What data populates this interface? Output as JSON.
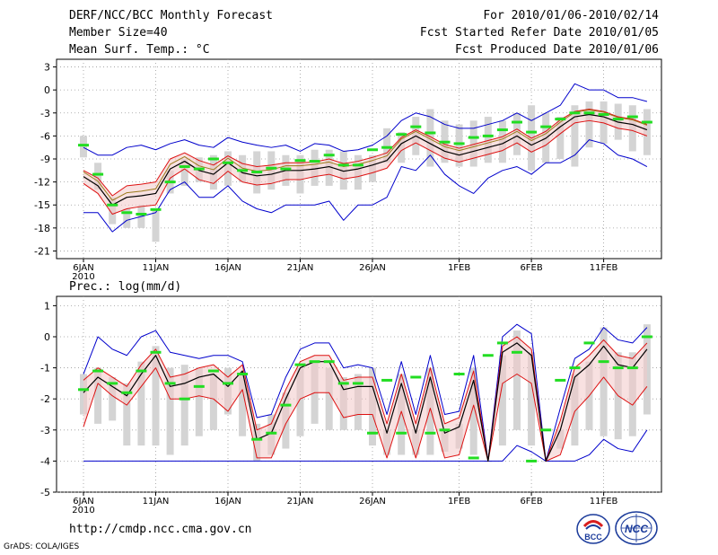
{
  "header": {
    "title": "DERF/NCC/BCC Monthly Forecast",
    "member_size": "Member Size=40",
    "variable": "Mean Surf. Temp.: °C",
    "period": "For 2010/01/06-2010/02/14",
    "fcst_started": "Fcst Started Refer Date 2010/01/05",
    "fcst_produced": "Fcst Produced Date 2010/01/06"
  },
  "footer": {
    "url": "http://cmdp.ncc.cma.gov.cn",
    "grads": "GrADS: COLA/IGES",
    "logo_bcc": "BCC",
    "logo_ncc": "NCC"
  },
  "colors": {
    "box": "#d4d4d4",
    "green": "#22dd22",
    "mean": "#000000",
    "inner": "#dd1111",
    "outer": "#0000cc",
    "olive": "#9b7a1a"
  },
  "chart_data": [
    {
      "type": "line",
      "title": "Mean Surf. Temp.: °C",
      "ylim": [
        -22,
        4
      ],
      "yticks": [
        3,
        0,
        -3,
        -6,
        -9,
        -12,
        -15,
        -18,
        -21
      ],
      "x": [
        0,
        1,
        2,
        3,
        4,
        5,
        6,
        7,
        8,
        9,
        10,
        11,
        12,
        13,
        14,
        15,
        16,
        17,
        18,
        19,
        20,
        21,
        22,
        23,
        24,
        25,
        26,
        27,
        28,
        29,
        30,
        31,
        32,
        33,
        34,
        35,
        36,
        37,
        38,
        39
      ],
      "xticks": [
        {
          "x": 0,
          "label": "6JAN",
          "year": "2010"
        },
        {
          "x": 5,
          "label": "11JAN"
        },
        {
          "x": 10,
          "label": "16JAN"
        },
        {
          "x": 15,
          "label": "21JAN"
        },
        {
          "x": 20,
          "label": "26JAN"
        },
        {
          "x": 26,
          "label": "1FEB"
        },
        {
          "x": 31,
          "label": "6FEB"
        },
        {
          "x": 36,
          "label": "11FEB"
        }
      ],
      "box_high": [
        -6.0,
        -9.5,
        -14.0,
        -15.5,
        -15.0,
        -15.5,
        -10.5,
        -9.0,
        -8.8,
        -8.5,
        -8.0,
        -8.5,
        -8.0,
        -8.0,
        -8.5,
        -8.5,
        -7.8,
        -7.8,
        -8.0,
        -8.5,
        -8.5,
        -5.0,
        -5.5,
        -3.5,
        -2.5,
        -4.0,
        -4.5,
        -4.0,
        -3.5,
        -4.0,
        -3.0,
        -2.0,
        -3.0,
        -3.5,
        -2.0,
        -1.5,
        -1.5,
        -1.8,
        -2.0,
        -2.5
      ],
      "box_low": [
        -8.8,
        -13.0,
        -17.5,
        -18.0,
        -18.0,
        -19.8,
        -13.5,
        -12.5,
        -12.0,
        -13.0,
        -12.5,
        -12.0,
        -13.5,
        -13.0,
        -12.5,
        -13.5,
        -12.5,
        -12.5,
        -13.0,
        -13.0,
        -12.0,
        -9.5,
        -9.5,
        -8.5,
        -10.0,
        -9.5,
        -10.0,
        -10.0,
        -9.5,
        -9.5,
        -8.5,
        -10.5,
        -9.5,
        -9.0,
        -10.0,
        -7.5,
        -7.0,
        -6.5,
        -8.0,
        -8.5
      ],
      "member_mark": [
        -7.2,
        -11.0,
        -15.0,
        -16.0,
        -16.2,
        -15.6,
        -12.0,
        -10.0,
        -10.3,
        -9.0,
        -9.5,
        -10.5,
        -10.7,
        -10.2,
        -10.3,
        -9.2,
        -9.3,
        -8.5,
        -9.8,
        -9.8,
        -7.8,
        -7.5,
        -5.8,
        -4.8,
        -5.6,
        -6.8,
        -7.0,
        -6.2,
        -6.0,
        -5.2,
        -4.2,
        -5.5,
        -4.8,
        -3.8,
        -3.0,
        -3.0,
        -3.2,
        -3.8,
        -3.5,
        -4.2
      ],
      "mean": [
        -11.3,
        -12.5,
        -15.0,
        -14.0,
        -13.8,
        -13.5,
        -10.3,
        -9.3,
        -10.5,
        -11.0,
        -9.5,
        -10.8,
        -11.2,
        -11.0,
        -10.5,
        -10.5,
        -10.3,
        -10.0,
        -10.6,
        -10.3,
        -9.8,
        -9.2,
        -7.0,
        -6.0,
        -7.0,
        -8.0,
        -8.5,
        -8.0,
        -7.5,
        -7.0,
        -6.0,
        -7.2,
        -6.3,
        -4.8,
        -3.5,
        -3.2,
        -3.5,
        -4.2,
        -4.5,
        -5.2
      ],
      "inner_high": [
        -10.5,
        -11.5,
        -13.8,
        -12.5,
        -12.3,
        -12.0,
        -9.0,
        -8.2,
        -9.2,
        -9.8,
        -8.6,
        -9.6,
        -10.0,
        -9.8,
        -9.5,
        -9.5,
        -9.4,
        -9.0,
        -9.6,
        -9.3,
        -8.8,
        -8.2,
        -6.2,
        -5.2,
        -6.1,
        -7.1,
        -7.6,
        -7.1,
        -6.6,
        -6.1,
        -5.1,
        -6.3,
        -5.4,
        -3.9,
        -2.8,
        -2.5,
        -2.8,
        -3.5,
        -3.8,
        -4.5
      ],
      "inner_low": [
        -12.2,
        -13.5,
        -16.2,
        -15.5,
        -15.2,
        -15.0,
        -11.5,
        -10.3,
        -11.7,
        -12.2,
        -10.6,
        -12.0,
        -12.4,
        -12.2,
        -11.7,
        -11.7,
        -11.3,
        -11.0,
        -11.6,
        -11.3,
        -10.8,
        -10.2,
        -7.9,
        -6.9,
        -7.9,
        -8.9,
        -9.4,
        -8.9,
        -8.4,
        -7.9,
        -6.9,
        -8.1,
        -7.2,
        -5.7,
        -4.3,
        -4.0,
        -4.3,
        -5.0,
        -5.3,
        -6.0
      ],
      "outer_high": [
        -7.5,
        -8.5,
        -8.5,
        -7.5,
        -7.2,
        -7.8,
        -7.0,
        -6.5,
        -7.2,
        -7.5,
        -6.2,
        -6.8,
        -7.2,
        -7.5,
        -7.2,
        -8.0,
        -7.0,
        -7.2,
        -8.0,
        -7.8,
        -7.2,
        -6.0,
        -4.0,
        -3.0,
        -3.5,
        -4.5,
        -5.0,
        -5.0,
        -4.5,
        -4.0,
        -3.0,
        -4.0,
        -3.0,
        -2.0,
        0.8,
        0.0,
        0.0,
        -1.0,
        -1.0,
        -1.5
      ],
      "outer_low": [
        -16.0,
        -16.0,
        -18.5,
        -17.0,
        -16.5,
        -16.0,
        -13.0,
        -12.0,
        -14.0,
        -14.0,
        -12.5,
        -14.5,
        -15.5,
        -16.0,
        -15.0,
        -15.0,
        -15.0,
        -14.5,
        -17.0,
        -15.0,
        -15.0,
        -14.0,
        -10.0,
        -10.5,
        -8.5,
        -11.0,
        -12.5,
        -13.5,
        -11.5,
        -10.5,
        -10.0,
        -11.0,
        -9.5,
        -9.5,
        -8.5,
        -6.5,
        -7.0,
        -8.5,
        -9.0,
        -10.0
      ]
    },
    {
      "type": "line",
      "title": "Prec.: log(mm/d)",
      "ylim": [
        -5,
        1.3
      ],
      "yticks": [
        1,
        0,
        -1,
        -2,
        -3,
        -4,
        -5
      ],
      "x": [
        0,
        1,
        2,
        3,
        4,
        5,
        6,
        7,
        8,
        9,
        10,
        11,
        12,
        13,
        14,
        15,
        16,
        17,
        18,
        19,
        20,
        21,
        22,
        23,
        24,
        25,
        26,
        27,
        28,
        29,
        30,
        31,
        32,
        33,
        34,
        35,
        36,
        37,
        38,
        39
      ],
      "xticks": [
        {
          "x": 0,
          "label": "6JAN",
          "year": "2010"
        },
        {
          "x": 5,
          "label": "11JAN"
        },
        {
          "x": 10,
          "label": "16JAN"
        },
        {
          "x": 15,
          "label": "21JAN"
        },
        {
          "x": 20,
          "label": "26JAN"
        },
        {
          "x": 26,
          "label": "1FEB"
        },
        {
          "x": 31,
          "label": "6FEB"
        },
        {
          "x": 36,
          "label": "11FEB"
        }
      ],
      "box_high": [
        -1.2,
        -1.0,
        -1.3,
        -1.5,
        -0.8,
        -0.3,
        -1.0,
        -0.9,
        -1.0,
        -1.2,
        -1.0,
        -1.2,
        -2.8,
        -2.5,
        -1.8,
        -1.0,
        -0.8,
        -1.0,
        -1.3,
        -1.2,
        -1.0,
        -3.0,
        -1.2,
        -3.0,
        -1.0,
        -3.0,
        -2.8,
        -1.0,
        -4.0,
        -0.6,
        0.2,
        -0.5,
        -4.0,
        -3.0,
        -1.2,
        -0.8,
        0.3,
        -0.5,
        -0.5,
        0.4
      ],
      "box_low": [
        -2.5,
        -2.8,
        -2.7,
        -3.5,
        -3.5,
        -3.5,
        -3.8,
        -3.5,
        -3.2,
        -3.0,
        -2.5,
        -3.2,
        -4.0,
        -3.8,
        -3.6,
        -3.2,
        -2.8,
        -3.0,
        -3.0,
        -3.0,
        -3.5,
        -3.8,
        -3.8,
        -3.8,
        -3.8,
        -3.7,
        -3.6,
        -3.8,
        -4.0,
        -3.5,
        -3.0,
        -3.5,
        -4.0,
        -3.6,
        -3.5,
        -3.0,
        -3.2,
        -3.3,
        -3.2,
        -2.5
      ],
      "member_mark": [
        -1.7,
        -1.1,
        -1.5,
        -1.8,
        -1.1,
        -0.5,
        -1.5,
        -2.0,
        -1.6,
        -1.1,
        -1.5,
        -1.2,
        -3.3,
        -3.1,
        -2.2,
        -0.9,
        -0.8,
        -0.8,
        -1.5,
        -1.5,
        -3.1,
        -1.4,
        -3.1,
        -1.3,
        -3.1,
        -3.0,
        -1.2,
        -3.9,
        -0.6,
        -0.2,
        -0.5,
        -4.0,
        -3.0,
        -1.4,
        -1.0,
        -0.2,
        -0.8,
        -1.0,
        -1.0,
        0.0
      ],
      "mean": [
        -1.8,
        -1.3,
        -1.6,
        -1.9,
        -1.2,
        -0.6,
        -1.6,
        -1.5,
        -1.3,
        -1.2,
        -1.6,
        -1.1,
        -3.3,
        -3.1,
        -2.0,
        -1.0,
        -0.8,
        -0.8,
        -1.7,
        -1.6,
        -1.6,
        -3.1,
        -1.5,
        -3.1,
        -1.3,
        -3.1,
        -2.9,
        -1.4,
        -4.0,
        -0.5,
        -0.2,
        -0.6,
        -4.0,
        -3.0,
        -1.3,
        -0.9,
        -0.3,
        -0.9,
        -1.0,
        -0.4
      ],
      "inner_high": [
        -1.4,
        -1.0,
        -1.3,
        -1.6,
        -0.9,
        -0.4,
        -1.3,
        -1.2,
        -1.0,
        -0.9,
        -1.3,
        -0.9,
        -3.0,
        -2.8,
        -1.7,
        -0.8,
        -0.6,
        -0.6,
        -1.4,
        -1.3,
        -1.3,
        -2.8,
        -1.2,
        -2.8,
        -1.0,
        -2.8,
        -2.6,
        -1.1,
        -4.0,
        -0.3,
        0.0,
        -0.4,
        -4.0,
        -2.7,
        -1.0,
        -0.6,
        -0.1,
        -0.6,
        -0.7,
        -0.2
      ],
      "inner_low": [
        -2.9,
        -1.5,
        -1.9,
        -2.2,
        -1.6,
        -1.0,
        -2.0,
        -2.0,
        -1.9,
        -2.0,
        -2.4,
        -1.7,
        -3.9,
        -3.9,
        -2.8,
        -2.0,
        -1.8,
        -1.8,
        -2.6,
        -2.5,
        -2.5,
        -3.9,
        -2.4,
        -3.9,
        -2.3,
        -3.9,
        -3.8,
        -2.2,
        -4.0,
        -1.5,
        -1.2,
        -1.5,
        -4.0,
        -3.8,
        -2.4,
        -1.9,
        -1.3,
        -1.9,
        -2.2,
        -1.6
      ],
      "outer_high": [
        -1.2,
        0.0,
        -0.4,
        -0.6,
        0.0,
        0.2,
        -0.5,
        -0.6,
        -0.7,
        -0.6,
        -0.6,
        -0.8,
        -2.6,
        -2.5,
        -1.3,
        -0.4,
        -0.2,
        -0.2,
        -1.0,
        -0.9,
        -1.0,
        -2.5,
        -0.8,
        -2.5,
        -0.6,
        -2.5,
        -2.4,
        -0.6,
        -4.0,
        0.0,
        0.4,
        0.1,
        -4.0,
        -2.3,
        -0.7,
        -0.4,
        0.3,
        -0.1,
        -0.2,
        0.3
      ],
      "outer_low": [
        -4.0,
        -4.0,
        -4.0,
        -4.0,
        -4.0,
        -4.0,
        -4.0,
        -4.0,
        -4.0,
        -4.0,
        -4.0,
        -4.0,
        -4.0,
        -4.0,
        -4.0,
        -4.0,
        -4.0,
        -4.0,
        -4.0,
        -4.0,
        -4.0,
        -4.0,
        -4.0,
        -4.0,
        -4.0,
        -4.0,
        -4.0,
        -4.0,
        -4.0,
        -4.0,
        -3.5,
        -3.7,
        -4.0,
        -4.0,
        -4.0,
        -3.8,
        -3.3,
        -3.6,
        -3.7,
        -3.0
      ]
    }
  ]
}
